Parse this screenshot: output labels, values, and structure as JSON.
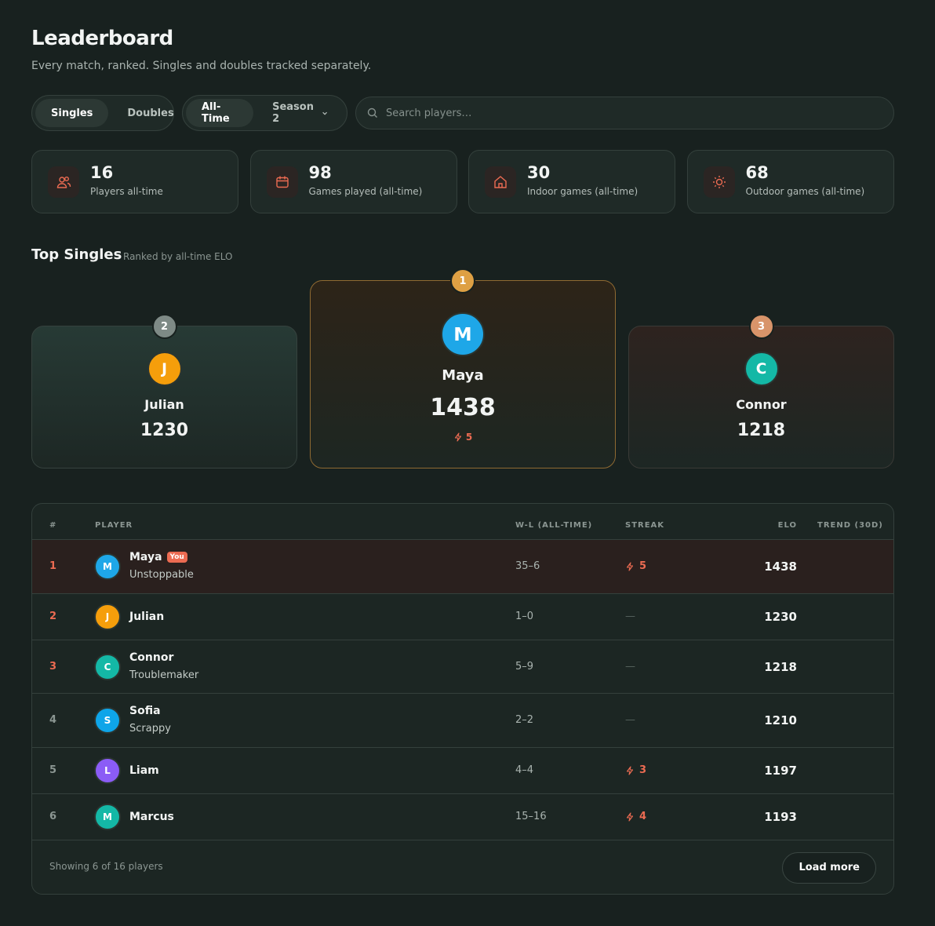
{
  "header": {
    "title": "Leaderboard",
    "subtitle": "Every match, ranked. Singles and doubles tracked separately."
  },
  "filters": {
    "mode": [
      "Singles",
      "Doubles"
    ],
    "period": [
      "All-Time",
      "Season 2"
    ],
    "search_placeholder": "Search players…"
  },
  "stats": [
    {
      "value": 16,
      "label": "Players all-time"
    },
    {
      "value": 98,
      "label": "Games played (all-time)"
    },
    {
      "value": 30,
      "label": "Indoor games (all-time)"
    },
    {
      "value": 68,
      "label": "Outdoor games (all-time)"
    }
  ],
  "podium": {
    "title": "Top Singles",
    "subtitle": "Ranked by all-time ELO",
    "entries": [
      {
        "rank": 1,
        "initial": "M",
        "name": "Maya",
        "elo": 1438,
        "streak": 5,
        "color": "#1ea7e8"
      },
      {
        "rank": 2,
        "initial": "J",
        "name": "Julian",
        "elo": 1230,
        "color": "#f59e0b"
      },
      {
        "rank": 3,
        "initial": "C",
        "name": "Connor",
        "elo": 1218,
        "color": "#14b8a6"
      }
    ]
  },
  "table": {
    "columns": [
      "#",
      "PLAYER",
      "W-L (ALL-TIME)",
      "STREAK",
      "ELO",
      "TREND (30D)"
    ],
    "rows": [
      {
        "rank": 1,
        "initial": "M",
        "name": "Maya",
        "badge": "You",
        "subtitle": "Unstoppable",
        "wl": "35–6",
        "streak": 5,
        "elo": 1438,
        "color": "#1ea7e8"
      },
      {
        "rank": 2,
        "initial": "J",
        "name": "Julian",
        "wl": "1–0",
        "streak": "—",
        "elo": 1230,
        "color": "#f59e0b"
      },
      {
        "rank": 3,
        "initial": "C",
        "name": "Connor",
        "subtitle": "Troublemaker",
        "wl": "5–9",
        "streak": "—",
        "elo": 1218,
        "color": "#14b8a6"
      },
      {
        "rank": 4,
        "initial": "S",
        "name": "Sofia",
        "subtitle": "Scrappy",
        "wl": "2–2",
        "streak": "—",
        "elo": 1210,
        "color": "#0ea5e9"
      },
      {
        "rank": 5,
        "initial": "L",
        "name": "Liam",
        "wl": "4–4",
        "streak": 3,
        "elo": 1197,
        "color": "#8b5cf6"
      },
      {
        "rank": 6,
        "initial": "M",
        "name": "Marcus",
        "wl": "15–16",
        "streak": 4,
        "elo": 1193,
        "color": "#14b8a6"
      }
    ]
  },
  "footer": {
    "showing": "Showing 6 of 16 players",
    "button": "Load more"
  }
}
